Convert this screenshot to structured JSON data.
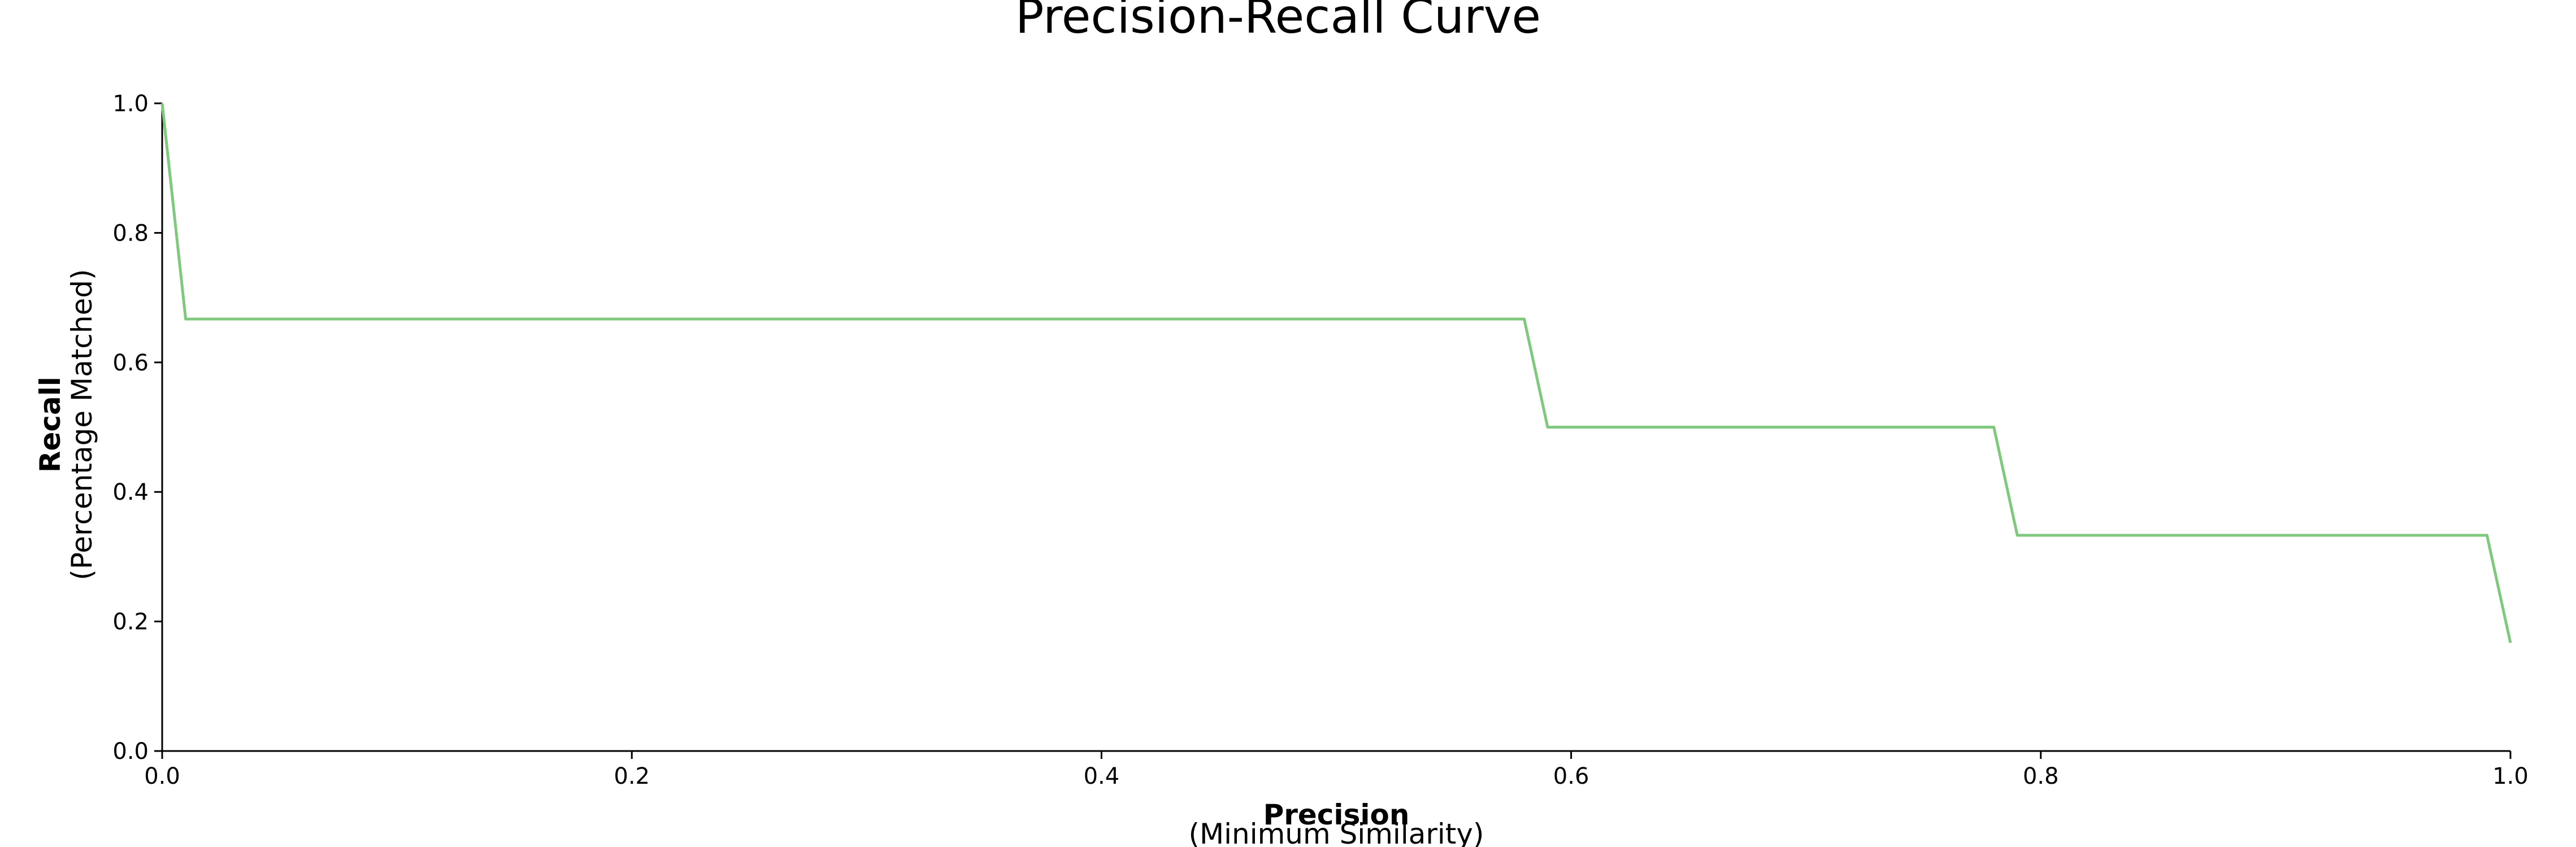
{
  "chart_data": {
    "type": "line",
    "title": "Precision-Recall Curve",
    "xlabel": "Precision",
    "xlabel_sub": "(Minimum Similarity)",
    "ylabel": "Recall",
    "ylabel_sub": "(Percentage Matched)",
    "xlim": [
      0.0,
      1.0
    ],
    "ylim": [
      0.0,
      1.0
    ],
    "xticks": [
      0.0,
      0.2,
      0.4,
      0.6,
      0.8,
      1.0
    ],
    "xtick_labels": [
      "0.0",
      "0.2",
      "0.4",
      "0.6",
      "0.8",
      "1.0"
    ],
    "yticks": [
      0.0,
      0.2,
      0.4,
      0.6,
      0.8,
      1.0
    ],
    "ytick_labels": [
      "0.0",
      "0.2",
      "0.4",
      "0.6",
      "0.8",
      "1.0"
    ],
    "grid": false,
    "series": [
      {
        "color": "#7fc97f",
        "x": [
          0.0,
          0.01,
          0.58,
          0.59,
          0.78,
          0.79,
          0.99,
          1.0
        ],
        "y": [
          1.0,
          0.667,
          0.667,
          0.5,
          0.5,
          0.333,
          0.333,
          0.167
        ]
      }
    ]
  }
}
